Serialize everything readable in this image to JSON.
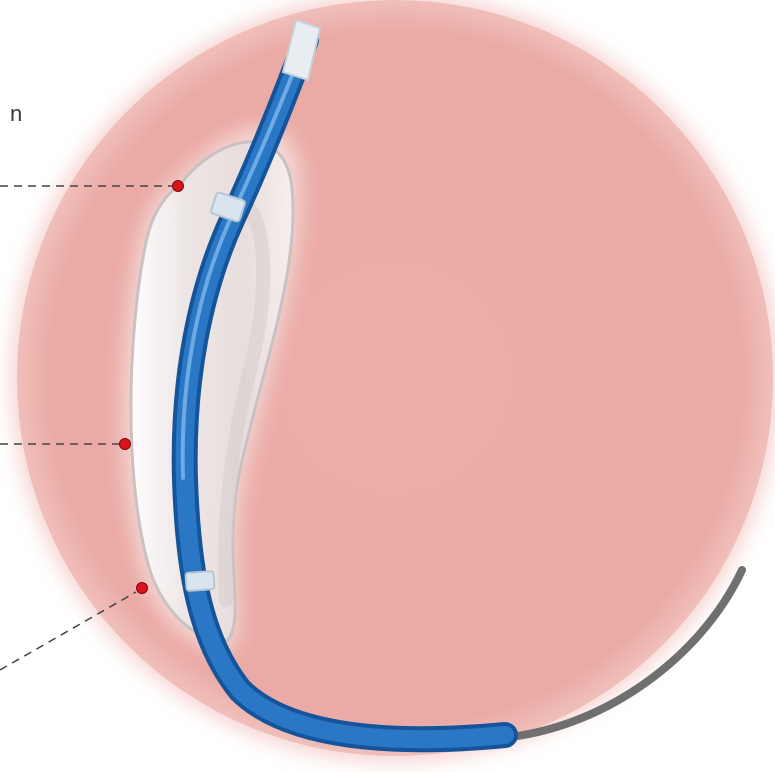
{
  "diagram": {
    "subject": "balloon-catheter-in-vessel",
    "partial_label_text": "n",
    "colors": {
      "vessel_fill": "#ecaea9",
      "vessel_glow": "#f6d3d0",
      "balloon_fill": "#f0ebea",
      "balloon_edge": "#c9c2c2",
      "catheter_blue": "#2a77c6",
      "catheter_blue_dark": "#15549a",
      "catheter_highlight": "#7fb6ea",
      "marker_band": "#d9e4ee",
      "tip": "#e9eef2",
      "guidewire": "#6f6f6f",
      "callout_dot": "#d9121b",
      "callout_line": "#444444"
    },
    "callouts": [
      {
        "name": "callout-balloon-proximal-shoulder"
      },
      {
        "name": "callout-balloon-body"
      },
      {
        "name": "callout-balloon-distal-end"
      }
    ]
  }
}
